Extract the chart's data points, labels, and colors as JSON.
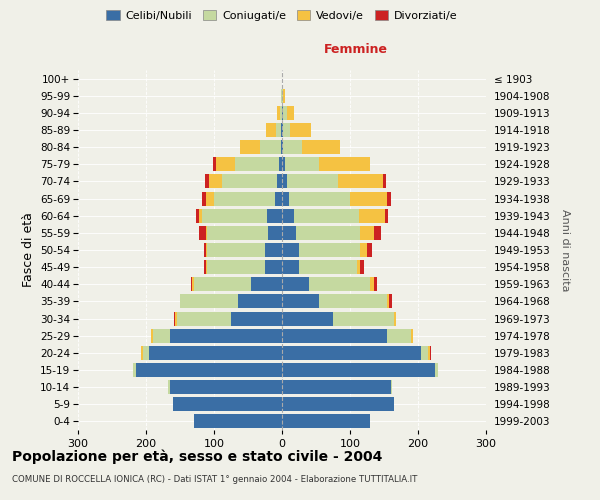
{
  "age_groups": [
    "0-4",
    "5-9",
    "10-14",
    "15-19",
    "20-24",
    "25-29",
    "30-34",
    "35-39",
    "40-44",
    "45-49",
    "50-54",
    "55-59",
    "60-64",
    "65-69",
    "70-74",
    "75-79",
    "80-84",
    "85-89",
    "90-94",
    "95-99",
    "100+"
  ],
  "birth_years": [
    "1999-2003",
    "1994-1998",
    "1989-1993",
    "1984-1988",
    "1979-1983",
    "1974-1978",
    "1969-1973",
    "1964-1968",
    "1959-1963",
    "1954-1958",
    "1949-1953",
    "1944-1948",
    "1939-1943",
    "1934-1938",
    "1929-1933",
    "1924-1928",
    "1919-1923",
    "1914-1918",
    "1909-1913",
    "1904-1908",
    "≤ 1903"
  ],
  "colors": {
    "celibi": "#3a6ea5",
    "coniugati": "#c5d9a0",
    "vedovi": "#f5c242",
    "divorziati": "#cc2222"
  },
  "males": {
    "celibi": [
      130,
      160,
      165,
      215,
      195,
      165,
      75,
      65,
      45,
      25,
      25,
      20,
      22,
      10,
      8,
      4,
      2,
      1,
      0,
      0,
      0
    ],
    "coniugati": [
      0,
      0,
      2,
      4,
      10,
      25,
      80,
      85,
      85,
      85,
      85,
      90,
      95,
      90,
      80,
      65,
      30,
      8,
      3,
      1,
      0
    ],
    "vedovi": [
      0,
      0,
      0,
      0,
      2,
      2,
      2,
      0,
      2,
      2,
      2,
      2,
      5,
      12,
      20,
      28,
      30,
      15,
      5,
      1,
      0
    ],
    "divorziati": [
      0,
      0,
      0,
      0,
      0,
      0,
      2,
      0,
      2,
      2,
      2,
      10,
      5,
      5,
      5,
      5,
      0,
      0,
      0,
      0,
      0
    ]
  },
  "females": {
    "nubili": [
      130,
      165,
      160,
      225,
      205,
      155,
      75,
      55,
      40,
      25,
      25,
      20,
      18,
      10,
      8,
      5,
      2,
      2,
      2,
      0,
      0
    ],
    "coniugate": [
      0,
      0,
      2,
      5,
      10,
      35,
      90,
      100,
      90,
      85,
      90,
      95,
      95,
      90,
      75,
      50,
      28,
      10,
      5,
      2,
      0
    ],
    "vedove": [
      0,
      0,
      0,
      0,
      2,
      2,
      2,
      2,
      5,
      5,
      10,
      20,
      38,
      55,
      65,
      75,
      55,
      30,
      10,
      2,
      0
    ],
    "divorziate": [
      0,
      0,
      0,
      0,
      2,
      0,
      0,
      5,
      5,
      5,
      8,
      10,
      5,
      5,
      5,
      0,
      0,
      0,
      0,
      0,
      0
    ]
  },
  "xlim": 300,
  "title": "Popolazione per età, sesso e stato civile - 2004",
  "subtitle": "COMUNE DI ROCCELLA IONICA (RC) - Dati ISTAT 1° gennaio 2004 - Elaborazione TUTTITALIA.IT",
  "ylabel_left": "Fasce di età",
  "ylabel_right": "Anni di nascita",
  "xlabel_right": "Femmine",
  "background": "#f0f0e8"
}
